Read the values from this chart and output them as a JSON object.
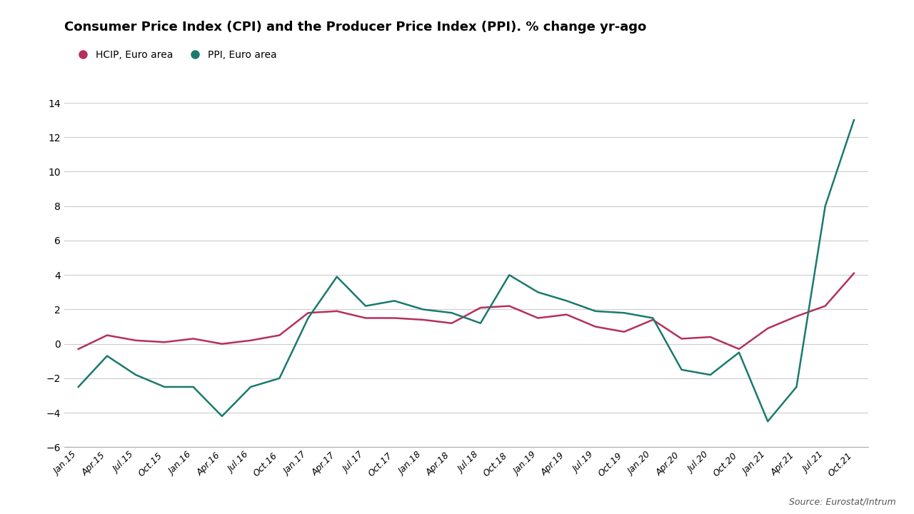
{
  "title": "Consumer Price Index (CPI) and the Producer Price Index (PPI). % change yr-ago",
  "source": "Source: Eurostat/Intrum",
  "legend": [
    "HCIP, Euro area",
    "PPI, Euro area"
  ],
  "hcip_color": "#b5305a",
  "ppi_color": "#1a7a6e",
  "background_color": "#ffffff",
  "ylim": [
    -6,
    14
  ],
  "yticks": [
    -6,
    -4,
    -2,
    0,
    2,
    4,
    6,
    8,
    10,
    12,
    14
  ],
  "x_labels": [
    "Jan.15",
    "Apr.15",
    "Jul.15",
    "Oct.15",
    "Jan.16",
    "Apr.16",
    "Jul.16",
    "Oct.16",
    "Jan.17",
    "Apr.17",
    "Jul.17",
    "Oct.17",
    "Jan.18",
    "Apr.18",
    "Jul.18",
    "Oct.18",
    "Jan.19",
    "Apr.19",
    "Jul.19",
    "Oct.19",
    "Jan.20",
    "Apr.20",
    "Jul.20",
    "Oct.20",
    "Jan.21",
    "Apr.21",
    "Jul.21",
    "Oct.21"
  ],
  "hcip_values": [
    -0.3,
    0.5,
    0.2,
    0.1,
    0.3,
    0.0,
    0.2,
    0.5,
    1.8,
    1.9,
    1.5,
    1.5,
    1.4,
    1.2,
    2.1,
    2.2,
    1.5,
    1.7,
    1.0,
    0.7,
    1.4,
    0.3,
    0.4,
    -0.3,
    0.9,
    1.6,
    2.2,
    4.1
  ],
  "ppi_values": [
    -2.5,
    -0.7,
    -1.8,
    -2.5,
    -2.5,
    -4.2,
    -2.5,
    -2.0,
    1.5,
    3.9,
    2.2,
    2.5,
    2.0,
    1.8,
    1.2,
    4.0,
    3.0,
    2.5,
    1.9,
    1.8,
    1.5,
    -1.5,
    -1.8,
    -0.5,
    -4.5,
    -2.5,
    8.0,
    13.0
  ],
  "line_width": 1.8
}
